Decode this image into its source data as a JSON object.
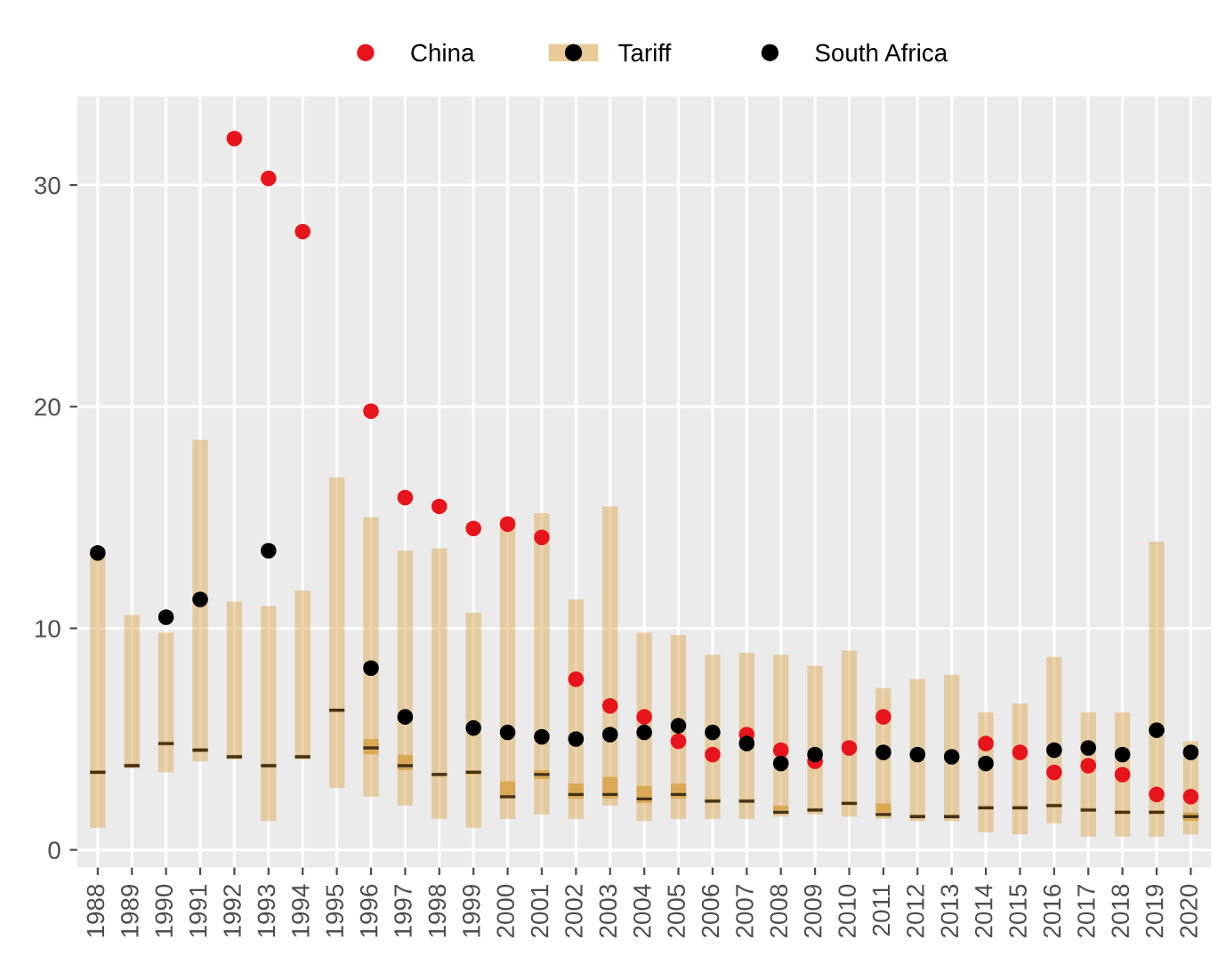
{
  "chart_data": {
    "type": "box",
    "categories": [
      "1988",
      "1989",
      "1990",
      "1991",
      "1992",
      "1993",
      "1994",
      "1995",
      "1996",
      "1997",
      "1998",
      "1999",
      "2000",
      "2001",
      "2002",
      "2003",
      "2004",
      "2005",
      "2006",
      "2007",
      "2008",
      "2009",
      "2010",
      "2011",
      "2012",
      "2013",
      "2014",
      "2015",
      "2016",
      "2017",
      "2018",
      "2019",
      "2020"
    ],
    "ylim": [
      -0.8,
      34
    ],
    "yticks": [
      0,
      10,
      20,
      30
    ],
    "grid": true,
    "legend": "top",
    "marker": "circle",
    "series": [
      {
        "name": "China",
        "type": "scatter",
        "color": "#e8141c",
        "values": [
          null,
          null,
          null,
          null,
          32.1,
          30.3,
          27.9,
          null,
          19.8,
          15.9,
          15.5,
          14.5,
          14.7,
          14.1,
          7.7,
          6.5,
          6.0,
          4.9,
          4.3,
          5.2,
          4.5,
          4.0,
          4.6,
          6.0,
          null,
          null,
          4.8,
          4.4,
          3.5,
          3.8,
          3.4,
          2.5,
          2.4
        ]
      },
      {
        "name": "Tariff",
        "color": "#dba955",
        "boxes": [
          {
            "low": 1.0,
            "q1": 3.4,
            "median": 3.5,
            "q3": 3.6,
            "high": 13.6
          },
          {
            "low": 3.7,
            "q1": 3.7,
            "median": 3.8,
            "q3": 3.9,
            "high": 10.6
          },
          {
            "low": 3.5,
            "q1": 4.7,
            "median": 4.8,
            "q3": 4.9,
            "high": 9.8
          },
          {
            "low": 4.0,
            "q1": 4.4,
            "median": 4.5,
            "q3": 4.6,
            "high": 18.5
          },
          {
            "low": 4.1,
            "q1": 4.1,
            "median": 4.2,
            "q3": 4.3,
            "high": 11.2
          },
          {
            "low": 1.3,
            "q1": 3.7,
            "median": 3.8,
            "q3": 3.9,
            "high": 11.0
          },
          {
            "low": 4.1,
            "q1": 4.1,
            "median": 4.2,
            "q3": 4.3,
            "high": 11.7
          },
          {
            "low": 2.8,
            "q1": 6.2,
            "median": 6.3,
            "q3": 6.4,
            "high": 16.8
          },
          {
            "low": 2.4,
            "q1": 4.3,
            "median": 4.6,
            "q3": 5.0,
            "high": 15.0
          },
          {
            "low": 2.0,
            "q1": 3.6,
            "median": 3.8,
            "q3": 4.3,
            "high": 13.5
          },
          {
            "low": 1.4,
            "q1": 3.3,
            "median": 3.4,
            "q3": 3.5,
            "high": 13.6
          },
          {
            "low": 1.0,
            "q1": 3.4,
            "median": 3.5,
            "q3": 3.6,
            "high": 10.7
          },
          {
            "low": 1.4,
            "q1": 2.3,
            "median": 2.4,
            "q3": 3.1,
            "high": 15.0
          },
          {
            "low": 1.6,
            "q1": 3.2,
            "median": 3.4,
            "q3": 3.6,
            "high": 15.2
          },
          {
            "low": 1.4,
            "q1": 2.3,
            "median": 2.5,
            "q3": 3.0,
            "high": 11.3
          },
          {
            "low": 2.0,
            "q1": 2.3,
            "median": 2.5,
            "q3": 3.3,
            "high": 15.5
          },
          {
            "low": 1.3,
            "q1": 2.1,
            "median": 2.3,
            "q3": 2.9,
            "high": 9.8
          },
          {
            "low": 1.4,
            "q1": 2.3,
            "median": 2.5,
            "q3": 3.0,
            "high": 9.7
          },
          {
            "low": 1.4,
            "q1": 2.1,
            "median": 2.2,
            "q3": 2.3,
            "high": 8.8
          },
          {
            "low": 1.4,
            "q1": 2.1,
            "median": 2.2,
            "q3": 2.3,
            "high": 8.9
          },
          {
            "low": 1.5,
            "q1": 1.6,
            "median": 1.7,
            "q3": 2.0,
            "high": 8.8
          },
          {
            "low": 1.6,
            "q1": 1.7,
            "median": 1.8,
            "q3": 1.9,
            "high": 8.3
          },
          {
            "low": 1.5,
            "q1": 2.0,
            "median": 2.1,
            "q3": 2.2,
            "high": 9.0
          },
          {
            "low": 1.4,
            "q1": 1.5,
            "median": 1.6,
            "q3": 2.1,
            "high": 7.3
          },
          {
            "low": 1.3,
            "q1": 1.4,
            "median": 1.5,
            "q3": 1.6,
            "high": 7.7
          },
          {
            "low": 1.3,
            "q1": 1.4,
            "median": 1.5,
            "q3": 1.6,
            "high": 7.9
          },
          {
            "low": 0.8,
            "q1": 1.8,
            "median": 1.9,
            "q3": 2.0,
            "high": 6.2
          },
          {
            "low": 0.7,
            "q1": 1.8,
            "median": 1.9,
            "q3": 2.0,
            "high": 6.6
          },
          {
            "low": 1.2,
            "q1": 1.9,
            "median": 2.0,
            "q3": 2.1,
            "high": 8.7
          },
          {
            "low": 0.6,
            "q1": 1.7,
            "median": 1.8,
            "q3": 1.9,
            "high": 6.2
          },
          {
            "low": 0.6,
            "q1": 1.6,
            "median": 1.7,
            "q3": 1.8,
            "high": 6.2
          },
          {
            "low": 0.6,
            "q1": 1.6,
            "median": 1.7,
            "q3": 1.8,
            "high": 13.9
          },
          {
            "low": 0.7,
            "q1": 1.3,
            "median": 1.5,
            "q3": 1.7,
            "high": 4.9
          }
        ]
      },
      {
        "name": "South Africa",
        "type": "scatter",
        "color": "#000000",
        "values": [
          13.4,
          null,
          10.5,
          11.3,
          null,
          13.5,
          null,
          null,
          8.2,
          6.0,
          null,
          5.5,
          5.3,
          5.1,
          5.0,
          5.2,
          5.3,
          5.6,
          5.3,
          4.8,
          3.9,
          4.3,
          null,
          4.4,
          4.3,
          4.2,
          3.9,
          null,
          4.5,
          4.6,
          4.3,
          5.4,
          4.4
        ]
      }
    ]
  }
}
